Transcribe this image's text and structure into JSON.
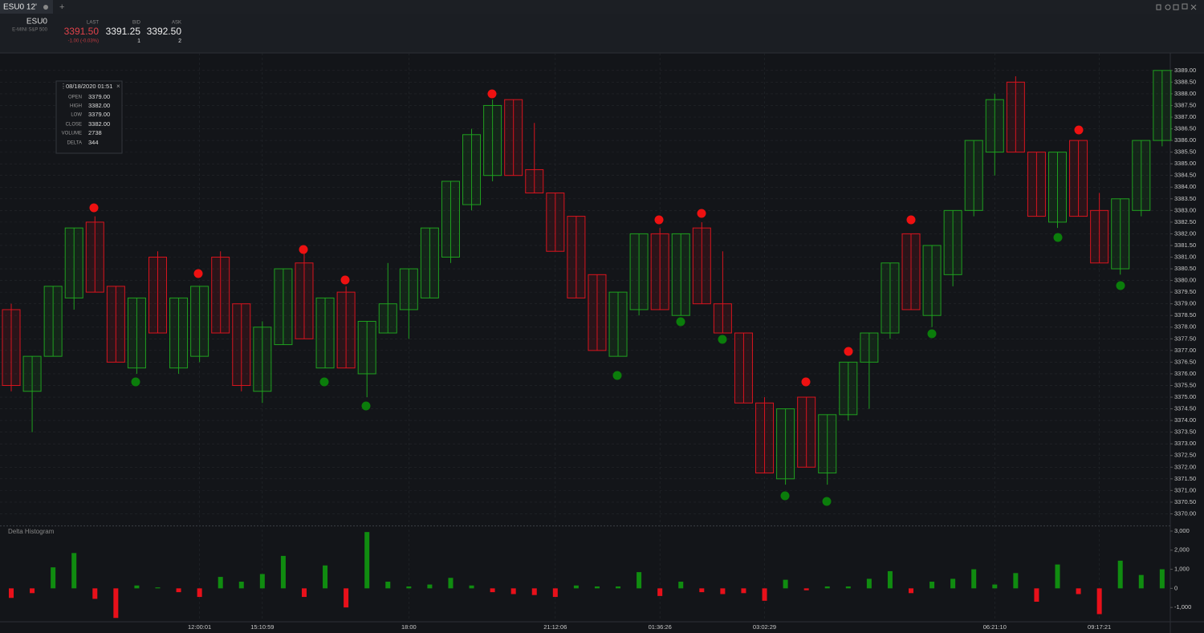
{
  "tab": {
    "title": "ESU0 12'"
  },
  "quote": {
    "symbol": "ESU0",
    "description": "E-MINI S&P 500",
    "last_label": "LAST",
    "last": "3391.50",
    "change": "-1.00 (-0.03%)",
    "bid_label": "BID",
    "bid": "3391.25",
    "bid_size": "1",
    "ask_label": "ASK",
    "ask": "3392.50",
    "ask_size": "2"
  },
  "info_box": {
    "title": "08/18/2020 01:51",
    "rows": [
      [
        "OPEN",
        "3379.00"
      ],
      [
        "HIGH",
        "3382.00"
      ],
      [
        "LOW",
        "3379.00"
      ],
      [
        "CLOSE",
        "3382.00"
      ],
      [
        "VOLUME",
        "2738"
      ],
      [
        "DELTA",
        "344"
      ]
    ]
  },
  "chart_data": [
    {
      "type": "candlestick",
      "up_color": "#1fa01f",
      "down_color": "#d8141e",
      "open": [
        3378.75,
        3375.25,
        3376.75,
        3379.25,
        3382.5,
        3379.75,
        3376.25,
        3381.0,
        3376.25,
        3376.75,
        3381.0,
        3379.0,
        3375.25,
        3377.25,
        3380.75,
        3376.25,
        3379.5,
        3376.0,
        3377.75,
        3378.75,
        3379.25,
        3381.0,
        3383.25,
        3384.5,
        3387.75,
        3384.75,
        3383.75,
        3382.75,
        3380.25,
        3376.75,
        3378.75,
        3382.0,
        3378.5,
        3382.25,
        3379.0,
        3377.75,
        3374.75,
        3371.5,
        3375.0,
        3371.75,
        3374.25,
        3376.5,
        3377.75,
        3382.0,
        3378.5,
        3380.25,
        3383.0,
        3385.5,
        3388.5,
        3385.5,
        3382.5,
        3386.0,
        3383.0,
        3380.5,
        3383.0,
        3386.0
      ],
      "high": [
        3379.0,
        3376.75,
        3379.75,
        3382.25,
        3382.75,
        3379.75,
        3379.25,
        3381.25,
        3379.25,
        3379.75,
        3381.25,
        3379.0,
        3378.25,
        3380.5,
        3381.25,
        3379.25,
        3379.75,
        3378.25,
        3380.75,
        3380.5,
        3382.25,
        3384.25,
        3386.5,
        3387.75,
        3387.75,
        3386.75,
        3383.75,
        3382.75,
        3380.25,
        3379.5,
        3382.0,
        3382.25,
        3382.0,
        3382.5,
        3381.25,
        3377.75,
        3375.0,
        3374.5,
        3375.0,
        3374.25,
        3376.5,
        3377.75,
        3380.75,
        3382.0,
        3381.5,
        3383.0,
        3386.0,
        3388.0,
        3388.75,
        3385.5,
        3385.5,
        3386.0,
        3383.75,
        3383.5,
        3386.0,
        3389.0
      ],
      "low": [
        3375.25,
        3373.5,
        3376.75,
        3378.75,
        3379.5,
        3376.5,
        3376.0,
        3377.75,
        3376.0,
        3376.5,
        3377.75,
        3375.25,
        3374.75,
        3377.25,
        3377.5,
        3376.25,
        3376.25,
        3375.0,
        3377.75,
        3377.5,
        3379.25,
        3380.75,
        3383.0,
        3384.25,
        3384.5,
        3383.75,
        3381.25,
        3379.25,
        3377.0,
        3376.75,
        3378.5,
        3378.75,
        3378.5,
        3379.0,
        3377.75,
        3374.75,
        3371.75,
        3371.25,
        3372.0,
        3371.25,
        3374.0,
        3374.5,
        3377.5,
        3378.75,
        3378.0,
        3379.75,
        3382.75,
        3384.5,
        3385.5,
        3382.75,
        3382.25,
        3382.75,
        3380.75,
        3380.25,
        3382.75,
        3385.75
      ],
      "close": [
        3375.5,
        3376.75,
        3379.75,
        3382.25,
        3379.5,
        3376.5,
        3379.25,
        3377.75,
        3379.25,
        3379.75,
        3377.75,
        3375.5,
        3378.0,
        3380.5,
        3377.5,
        3379.25,
        3376.25,
        3378.25,
        3379.0,
        3380.5,
        3382.25,
        3384.25,
        3386.25,
        3387.5,
        3384.5,
        3383.75,
        3381.25,
        3379.25,
        3377.0,
        3379.5,
        3382.0,
        3378.75,
        3382.0,
        3379.0,
        3377.75,
        3374.75,
        3371.75,
        3374.5,
        3372.0,
        3374.25,
        3376.5,
        3377.75,
        3380.75,
        3378.75,
        3381.5,
        3383.0,
        3386.0,
        3387.75,
        3385.5,
        3382.75,
        3385.5,
        3382.75,
        3380.75,
        3383.5,
        3386.0,
        3389.0
      ],
      "ylim": [
        3369.5,
        3389.75
      ],
      "yticks": [
        {
          "value": 3370,
          "label": "3370.00"
        },
        {
          "value": 3370.5,
          "label": "3370.50"
        },
        {
          "value": 3371,
          "label": "3371.00"
        },
        {
          "value": 3371.5,
          "label": "3371.50"
        },
        {
          "value": 3372,
          "label": "3372.00"
        },
        {
          "value": 3372.5,
          "label": "3372.50"
        },
        {
          "value": 3373,
          "label": "3373.00"
        },
        {
          "value": 3373.5,
          "label": "3373.50"
        },
        {
          "value": 3374,
          "label": "3374.00"
        },
        {
          "value": 3374.5,
          "label": "3374.50"
        },
        {
          "value": 3375,
          "label": "3375.00"
        },
        {
          "value": 3375.5,
          "label": "3375.50"
        },
        {
          "value": 3376,
          "label": "3376.00"
        },
        {
          "value": 3376.5,
          "label": "3376.50"
        },
        {
          "value": 3377,
          "label": "3377.00"
        },
        {
          "value": 3377.5,
          "label": "3377.50"
        },
        {
          "value": 3378,
          "label": "3378.00"
        },
        {
          "value": 3378.5,
          "label": "3378.50"
        },
        {
          "value": 3379,
          "label": "3379.00"
        },
        {
          "value": 3379.5,
          "label": "3379.50"
        },
        {
          "value": 3380,
          "label": "3380.00"
        },
        {
          "value": 3380.5,
          "label": "3380.50"
        },
        {
          "value": 3381,
          "label": "3381.00"
        },
        {
          "value": 3381.5,
          "label": "3381.50"
        },
        {
          "value": 3382,
          "label": "3382.00"
        },
        {
          "value": 3382.5,
          "label": "3382.50"
        },
        {
          "value": 3383,
          "label": "3383.00"
        },
        {
          "value": 3383.5,
          "label": "3383.50"
        },
        {
          "value": 3384,
          "label": "3384.00"
        },
        {
          "value": 3384.5,
          "label": "3384.50"
        },
        {
          "value": 3385,
          "label": "3385.00"
        },
        {
          "value": 3385.5,
          "label": "3385.50"
        },
        {
          "value": 3386,
          "label": "3386.00"
        },
        {
          "value": 3386.5,
          "label": "3386.50"
        },
        {
          "value": 3387,
          "label": "3387.00"
        },
        {
          "value": 3387.5,
          "label": "3387.50"
        },
        {
          "value": 3388,
          "label": "3388.00"
        },
        {
          "value": 3388.5,
          "label": "3388.50"
        },
        {
          "value": 3389,
          "label": "3389.00"
        }
      ],
      "grid": true
    },
    {
      "type": "bar",
      "title": "Delta Histogram",
      "pos_color": "#108c10",
      "neg_color": "#e8101a",
      "categories": [
        null,
        null,
        null,
        null,
        null,
        null,
        null,
        null,
        null,
        "12:00:01",
        null,
        null,
        "15:10:59",
        null,
        null,
        null,
        null,
        null,
        null,
        "18:00",
        null,
        null,
        null,
        null,
        null,
        null,
        "21:12:06",
        null,
        null,
        null,
        null,
        "01:36:26",
        null,
        null,
        null,
        null,
        "03:02:29",
        null,
        null,
        null,
        null,
        null,
        null,
        null,
        null,
        null,
        null,
        "06:21:10",
        null,
        null,
        null,
        null,
        "09:17:21",
        null,
        null,
        null
      ],
      "values": [
        -500,
        -250,
        1100,
        1850,
        -550,
        -1550,
        150,
        50,
        -200,
        -450,
        600,
        350,
        750,
        1700,
        -450,
        1200,
        -1000,
        2950,
        350,
        100,
        200,
        550,
        150,
        -200,
        -300,
        -350,
        -450,
        150,
        100,
        100,
        850,
        -400,
        350,
        -200,
        -300,
        -250,
        -650,
        450,
        -100,
        100,
        100,
        500,
        900,
        -250,
        350,
        500,
        1000,
        200,
        800,
        -700,
        1250,
        -300,
        -1350,
        1450,
        700,
        1000
      ],
      "ylim": [
        -1750,
        3250
      ],
      "yticks": [
        {
          "value": 3000,
          "label": "3,000"
        },
        {
          "value": 2000,
          "label": "2,000"
        },
        {
          "value": 1000,
          "label": "1,000"
        },
        0,
        {
          "value": -1000,
          "label": "-1,000"
        }
      ]
    }
  ]
}
